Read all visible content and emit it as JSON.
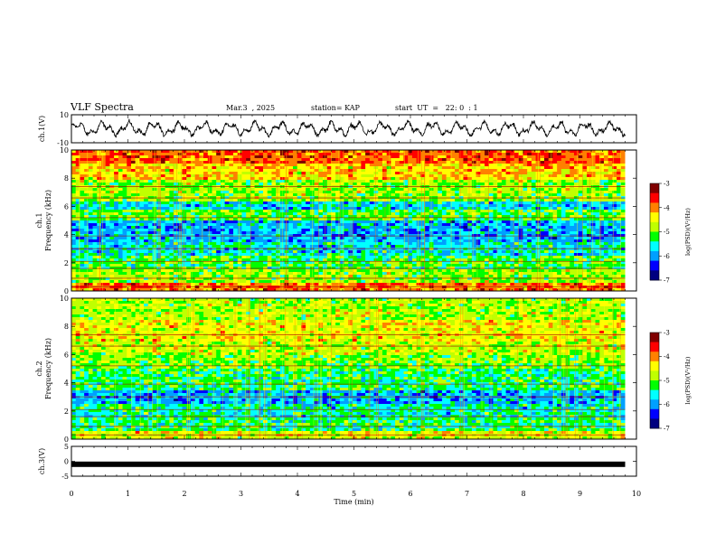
{
  "header": {
    "title": "VLF Spectra",
    "date": "Mar.3  , 2025",
    "station": "station= KAP",
    "start": "start  UT  =   22: 0  : 1"
  },
  "chart_data": [
    {
      "type": "line",
      "panel": "ch1-waveform",
      "ylabel": "ch.1(V)",
      "ylim": [
        -10,
        10
      ],
      "yticks": [
        "10",
        "-10"
      ],
      "xlim": [
        0,
        10
      ],
      "series": [
        {
          "values_note": "noisy oscillating voltage, amplitude about +/-6 V, 0 to 9.8 min"
        }
      ]
    },
    {
      "type": "heatmap",
      "panel": "ch1-spectrogram",
      "ylabel": "ch.1\nFrequency  (kHz)",
      "ylim": [
        0,
        10
      ],
      "yticks": [
        "0",
        "2",
        "4",
        "6",
        "8",
        "10"
      ],
      "xlim": [
        0,
        10
      ],
      "data_end_min": 9.8,
      "bands": [
        {
          "f": [
            0.0,
            0.5
          ],
          "level": -3.9
        },
        {
          "f": [
            0.5,
            1.5
          ],
          "level": -4.9
        },
        {
          "f": [
            1.5,
            2.5
          ],
          "level": -5.2
        },
        {
          "f": [
            2.5,
            3.5
          ],
          "level": -5.6
        },
        {
          "f": [
            3.5,
            5.0
          ],
          "level": -5.9
        },
        {
          "f": [
            5.0,
            5.7
          ],
          "level": -5.1
        },
        {
          "f": [
            5.7,
            6.4
          ],
          "level": -5.7
        },
        {
          "f": [
            6.4,
            7.8
          ],
          "level": -4.9
        },
        {
          "f": [
            7.8,
            9.0
          ],
          "level": -4.3
        },
        {
          "f": [
            9.0,
            10.0
          ],
          "level": -3.8
        }
      ],
      "colorbar": {
        "label": "log(PSD)(V²/Hz)",
        "range": [
          -7,
          -3
        ],
        "ticks": [
          "-3",
          "-4",
          "-5",
          "-6",
          "-7"
        ]
      }
    },
    {
      "type": "heatmap",
      "panel": "ch2-spectrogram",
      "ylabel": "ch.2\nFrequency  (kHz)",
      "ylim": [
        0,
        10
      ],
      "yticks": [
        "0",
        "2",
        "4",
        "6",
        "8",
        "10"
      ],
      "xlim": [
        0,
        10
      ],
      "data_end_min": 9.8,
      "bands": [
        {
          "f": [
            0.0,
            0.5
          ],
          "level": -4.6
        },
        {
          "f": [
            0.5,
            1.5
          ],
          "level": -5.3
        },
        {
          "f": [
            1.5,
            2.5
          ],
          "level": -5.5
        },
        {
          "f": [
            2.5,
            3.5
          ],
          "level": -5.9
        },
        {
          "f": [
            3.5,
            5.0
          ],
          "level": -5.3
        },
        {
          "f": [
            5.0,
            6.0
          ],
          "level": -5.0
        },
        {
          "f": [
            6.0,
            7.0
          ],
          "level": -4.7
        },
        {
          "f": [
            7.0,
            8.5
          ],
          "level": -4.5
        },
        {
          "f": [
            8.5,
            10.0
          ],
          "level": -4.8
        }
      ],
      "colorbar": {
        "label": "log(PSD)(V²/Hz)",
        "range": [
          -7,
          -3
        ],
        "ticks": [
          "-3",
          "-4",
          "-5",
          "-6",
          "-7"
        ]
      }
    },
    {
      "type": "line",
      "panel": "ch3-waveform",
      "ylabel": "ch.3(V)",
      "ylim": [
        -5,
        5
      ],
      "yticks": [
        "5",
        "0",
        "-5"
      ],
      "xlim": [
        0,
        10
      ],
      "series": [
        {
          "level": -1.0
        }
      ]
    }
  ],
  "xaxis": {
    "label": "Time  (min)",
    "ticks": [
      "0",
      "1",
      "2",
      "3",
      "4",
      "5",
      "6",
      "7",
      "8",
      "9",
      "10"
    ]
  },
  "colors": {
    "scale": [
      "#000080",
      "#0000ff",
      "#00a0ff",
      "#00ffff",
      "#00ff00",
      "#c0ff00",
      "#ffff00",
      "#ff8000",
      "#ff0000",
      "#800000"
    ],
    "line": "#000000"
  }
}
